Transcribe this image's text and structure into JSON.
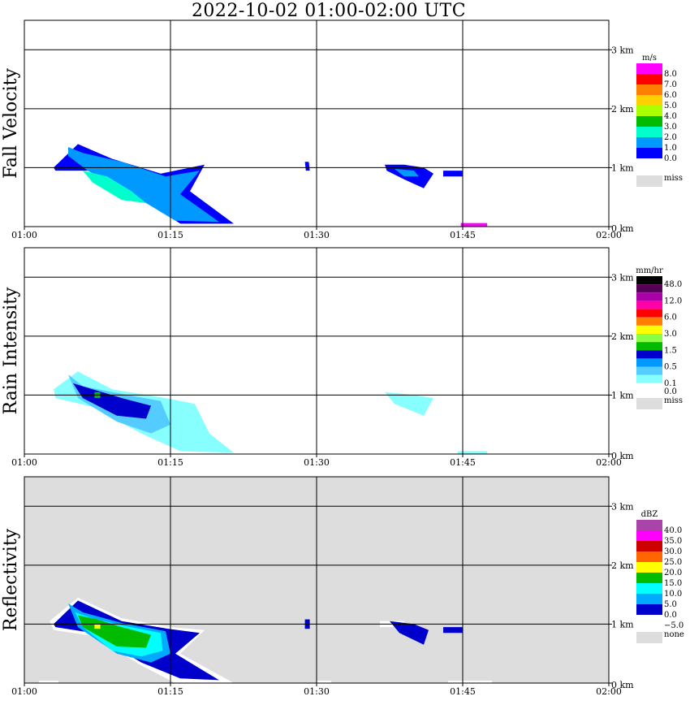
{
  "title": "2022-10-02   01:00-02:00 UTC",
  "x_ticks": [
    "01:00",
    "01:15",
    "01:30",
    "01:45",
    "02:00"
  ],
  "y_ticks": [
    "0 km",
    "1 km",
    "2 km",
    "3 km"
  ],
  "chart_data": [
    {
      "type": "heatmap",
      "ylabel": "Fall Velocity",
      "unit": "m/s",
      "background": "#ffffff",
      "scale": [
        {
          "label": "8.0",
          "color": "#ff00ff"
        },
        {
          "label": "7.0",
          "color": "#ff0000"
        },
        {
          "label": "6.0",
          "color": "#ff8000"
        },
        {
          "label": "5.0",
          "color": "#ffd000"
        },
        {
          "label": "4.0",
          "color": "#aaff00"
        },
        {
          "label": "3.0",
          "color": "#00bb00"
        },
        {
          "label": "2.0",
          "color": "#00ffcc"
        },
        {
          "label": "1.0",
          "color": "#0099ff"
        },
        {
          "label": "0.0",
          "color": "#0000ff"
        },
        {
          "label": "",
          "color": "#ffffff"
        }
      ],
      "miss_label": "miss",
      "miss_color": "#dddddd",
      "blobs": [
        {
          "color": "#0000ff",
          "pts": [
            [
              3.0,
              1.0
            ],
            [
              5.5,
              1.4
            ],
            [
              9,
              1.15
            ],
            [
              14,
              0.9
            ],
            [
              18.5,
              1.05
            ],
            [
              17,
              0.6
            ],
            [
              21.5,
              0.05
            ],
            [
              16,
              0.05
            ],
            [
              12,
              0.5
            ],
            [
              7,
              0.95
            ],
            [
              3.2,
              0.95
            ]
          ]
        },
        {
          "color": "#0099ff",
          "pts": [
            [
              4.5,
              1.35
            ],
            [
              6,
              1.25
            ],
            [
              10,
              1.1
            ],
            [
              14.5,
              0.85
            ],
            [
              18,
              0.95
            ],
            [
              16,
              0.55
            ],
            [
              20,
              0.08
            ],
            [
              15.5,
              0.1
            ],
            [
              11,
              0.55
            ],
            [
              6.5,
              0.95
            ],
            [
              4.5,
              1.2
            ]
          ]
        },
        {
          "color": "#00ffcc",
          "pts": [
            [
              6,
              0.95
            ],
            [
              8.5,
              0.85
            ],
            [
              11,
              0.6
            ],
            [
              12.5,
              0.4
            ],
            [
              10,
              0.45
            ],
            [
              7,
              0.75
            ]
          ]
        },
        {
          "color": "#0000ff",
          "pts": [
            [
              28.8,
              1.1
            ],
            [
              29.2,
              1.1
            ],
            [
              29.3,
              0.95
            ],
            [
              28.9,
              0.95
            ]
          ]
        },
        {
          "color": "#0000ff",
          "pts": [
            [
              37,
              1.05
            ],
            [
              39,
              1.05
            ],
            [
              41,
              1.0
            ],
            [
              42,
              0.9
            ],
            [
              41,
              0.65
            ],
            [
              39,
              0.8
            ],
            [
              37.2,
              0.95
            ]
          ]
        },
        {
          "color": "#0099ff",
          "pts": [
            [
              38,
              0.98
            ],
            [
              40,
              0.95
            ],
            [
              40.5,
              0.85
            ],
            [
              39,
              0.85
            ]
          ]
        },
        {
          "color": "#0000ff",
          "pts": [
            [
              43,
              0.95
            ],
            [
              45,
              0.95
            ],
            [
              45,
              0.85
            ],
            [
              43,
              0.85
            ]
          ]
        },
        {
          "color": "#ff00ff",
          "pts": [
            [
              44.8,
              0.06
            ],
            [
              47.5,
              0.06
            ],
            [
              47.5,
              0.0
            ],
            [
              44.8,
              0.0
            ]
          ]
        }
      ]
    },
    {
      "type": "heatmap",
      "ylabel": "Rain Intensity",
      "unit": "mm/hr",
      "background": "#ffffff",
      "scale": [
        {
          "label": "48.0",
          "color": "#000000"
        },
        {
          "label": "",
          "color": "#550055"
        },
        {
          "label": "12.0",
          "color": "#aa00aa"
        },
        {
          "label": "",
          "color": "#ff00aa"
        },
        {
          "label": "6.0",
          "color": "#ff0000"
        },
        {
          "label": "",
          "color": "#ff8000"
        },
        {
          "label": "3.0",
          "color": "#ffff00"
        },
        {
          "label": "",
          "color": "#88ff44"
        },
        {
          "label": "1.5",
          "color": "#00bb00"
        },
        {
          "label": "",
          "color": "#0000cc"
        },
        {
          "label": "0.5",
          "color": "#0099ff"
        },
        {
          "label": "",
          "color": "#55ccff"
        },
        {
          "label": "0.1",
          "color": "#88ffff"
        },
        {
          "label": "0.0",
          "color": "#ffffff"
        }
      ],
      "miss_label": "miss",
      "miss_color": "#dddddd",
      "blobs": [
        {
          "color": "#88ffff",
          "pts": [
            [
              3.0,
              1.1
            ],
            [
              5.5,
              1.4
            ],
            [
              9,
              1.1
            ],
            [
              14.5,
              0.95
            ],
            [
              17.5,
              0.85
            ],
            [
              19,
              0.35
            ],
            [
              21.5,
              0.02
            ],
            [
              16,
              0.05
            ],
            [
              12,
              0.35
            ],
            [
              7,
              0.8
            ],
            [
              3.2,
              0.95
            ]
          ]
        },
        {
          "color": "#55ccff",
          "pts": [
            [
              4.5,
              1.35
            ],
            [
              6,
              1.15
            ],
            [
              10,
              1.02
            ],
            [
              14,
              0.9
            ],
            [
              15,
              0.5
            ],
            [
              13,
              0.35
            ],
            [
              9.5,
              0.55
            ],
            [
              5.5,
              0.95
            ]
          ]
        },
        {
          "color": "#0000cc",
          "pts": [
            [
              5,
              1.2
            ],
            [
              7,
              1.1
            ],
            [
              10,
              0.95
            ],
            [
              13,
              0.82
            ],
            [
              12.5,
              0.6
            ],
            [
              9.5,
              0.65
            ],
            [
              6,
              0.95
            ]
          ]
        },
        {
          "color": "#00bb00",
          "pts": [
            [
              7.2,
              1.05
            ],
            [
              7.8,
              1.05
            ],
            [
              7.8,
              0.95
            ],
            [
              7.2,
              0.95
            ]
          ]
        },
        {
          "color": "#88ffff",
          "pts": [
            [
              37,
              1.05
            ],
            [
              40,
              1.0
            ],
            [
              42,
              0.95
            ],
            [
              41,
              0.65
            ],
            [
              38,
              0.85
            ]
          ]
        },
        {
          "color": "#88ffff",
          "pts": [
            [
              44.5,
              0.05
            ],
            [
              47.5,
              0.05
            ],
            [
              47.5,
              0.0
            ],
            [
              44.5,
              0.0
            ]
          ]
        }
      ]
    },
    {
      "type": "heatmap",
      "ylabel": "Reflectivity",
      "unit": "dBZ",
      "background": "#dddddd",
      "scale": [
        {
          "label": "40.0",
          "color": "#aa44aa"
        },
        {
          "label": "35.0",
          "color": "#ff00ff"
        },
        {
          "label": "30.0",
          "color": "#cc0000"
        },
        {
          "label": "25.0",
          "color": "#ff6600"
        },
        {
          "label": "20.0",
          "color": "#ffff00"
        },
        {
          "label": "15.0",
          "color": "#00bb00"
        },
        {
          "label": "10.0",
          "color": "#00ffff"
        },
        {
          "label": "5.0",
          "color": "#00aaff"
        },
        {
          "label": "0.0",
          "color": "#0000cc"
        },
        {
          "label": "−5.0",
          "color": "#ffffff"
        }
      ],
      "miss_label": "none",
      "miss_color": "#dddddd",
      "blobs": [
        {
          "color": "#ffffff",
          "pts": [
            [
              2.6,
              1.05
            ],
            [
              5.5,
              1.45
            ],
            [
              10,
              1.1
            ],
            [
              15,
              0.95
            ],
            [
              18.5,
              0.9
            ],
            [
              16,
              0.5
            ],
            [
              21.5,
              0.0
            ],
            [
              15.5,
              0.0
            ],
            [
              12,
              0.3
            ],
            [
              7,
              0.8
            ],
            [
              3,
              0.9
            ]
          ]
        },
        {
          "color": "#0000cc",
          "pts": [
            [
              3.0,
              1.0
            ],
            [
              5.5,
              1.4
            ],
            [
              10,
              1.05
            ],
            [
              14.8,
              0.92
            ],
            [
              18,
              0.85
            ],
            [
              15.5,
              0.5
            ],
            [
              20,
              0.05
            ],
            [
              16,
              0.08
            ],
            [
              12,
              0.35
            ],
            [
              7,
              0.85
            ],
            [
              3.2,
              0.95
            ]
          ]
        },
        {
          "color": "#00aaff",
          "pts": [
            [
              4.5,
              1.35
            ],
            [
              6,
              1.2
            ],
            [
              10,
              1.02
            ],
            [
              14.5,
              0.88
            ],
            [
              15,
              0.5
            ],
            [
              13,
              0.35
            ],
            [
              9.5,
              0.5
            ],
            [
              5.5,
              0.95
            ]
          ]
        },
        {
          "color": "#00ffff",
          "pts": [
            [
              5.2,
              1.2
            ],
            [
              7,
              1.1
            ],
            [
              10,
              0.98
            ],
            [
              14,
              0.85
            ],
            [
              14.2,
              0.55
            ],
            [
              12,
              0.45
            ],
            [
              9,
              0.55
            ],
            [
              6,
              0.95
            ]
          ]
        },
        {
          "color": "#00bb00",
          "pts": [
            [
              5.5,
              1.15
            ],
            [
              7.5,
              1.08
            ],
            [
              10,
              0.95
            ],
            [
              13,
              0.82
            ],
            [
              12.5,
              0.6
            ],
            [
              9.5,
              0.62
            ],
            [
              6,
              0.95
            ]
          ]
        },
        {
          "color": "#ffff00",
          "pts": [
            [
              7.2,
              1.0
            ],
            [
              7.8,
              1.0
            ],
            [
              7.8,
              0.92
            ],
            [
              7.2,
              0.92
            ]
          ]
        },
        {
          "color": "#0000cc",
          "pts": [
            [
              28.8,
              1.08
            ],
            [
              29.3,
              1.08
            ],
            [
              29.3,
              0.92
            ],
            [
              28.8,
              0.92
            ]
          ]
        },
        {
          "color": "#ffffff",
          "pts": [
            [
              36.5,
              1.05
            ],
            [
              39,
              1.05
            ],
            [
              39,
              0.95
            ],
            [
              36.5,
              0.95
            ]
          ]
        },
        {
          "color": "#0000cc",
          "pts": [
            [
              37.5,
              1.05
            ],
            [
              40,
              1.0
            ],
            [
              41.5,
              0.9
            ],
            [
              41,
              0.65
            ],
            [
              38.5,
              0.85
            ]
          ]
        },
        {
          "color": "#0000cc",
          "pts": [
            [
              43,
              0.95
            ],
            [
              45,
              0.95
            ],
            [
              45,
              0.85
            ],
            [
              43,
              0.85
            ]
          ]
        },
        {
          "color": "#ffffff",
          "pts": [
            [
              1.5,
              0.04
            ],
            [
              3.5,
              0.04
            ],
            [
              3.5,
              0.0
            ],
            [
              1.5,
              0.0
            ]
          ]
        },
        {
          "color": "#ffffff",
          "pts": [
            [
              30,
              0.04
            ],
            [
              31.5,
              0.04
            ],
            [
              31.5,
              0.0
            ],
            [
              30,
              0.0
            ]
          ]
        },
        {
          "color": "#ffffff",
          "pts": [
            [
              43.5,
              0.04
            ],
            [
              48,
              0.04
            ],
            [
              48,
              0.0
            ],
            [
              43.5,
              0.0
            ]
          ]
        }
      ]
    }
  ],
  "x_range_minutes": [
    0,
    60
  ],
  "y_range_km": [
    0,
    3.5
  ]
}
